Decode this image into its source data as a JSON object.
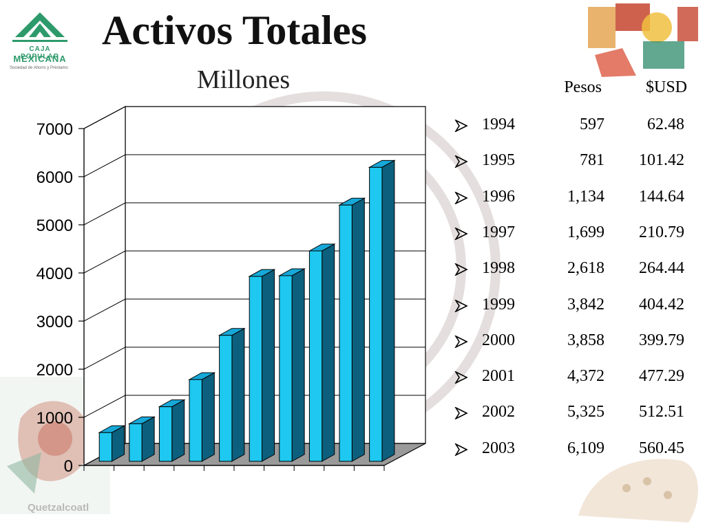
{
  "logo": {
    "line1": "CAJA POPULAR",
    "line2": "MEXICANA",
    "line3": "Sociedad de Ahorro y Préstamo"
  },
  "header": {
    "title": "Activos Totales",
    "subtitle": "Millones"
  },
  "table": {
    "col_pesos": "Pesos",
    "col_usd": "$USD",
    "rows": [
      {
        "year": "1994",
        "pesos": "597",
        "usd": "62.48"
      },
      {
        "year": "1995",
        "pesos": "781",
        "usd": "101.42"
      },
      {
        "year": "1996",
        "pesos": "1,134",
        "usd": "144.64"
      },
      {
        "year": "1997",
        "pesos": "1,699",
        "usd": "210.79"
      },
      {
        "year": "1998",
        "pesos": "2,618",
        "usd": "264.44"
      },
      {
        "year": "1999",
        "pesos": "3,842",
        "usd": "404.42"
      },
      {
        "year": "2000",
        "pesos": "3,858",
        "usd": "399.79"
      },
      {
        "year": "2001",
        "pesos": "4,372",
        "usd": "477.29"
      },
      {
        "year": "2002",
        "pesos": "5,325",
        "usd": "512.51"
      },
      {
        "year": "2003",
        "pesos": "6,109",
        "usd": "560.45"
      }
    ]
  },
  "decorations": {
    "left_caption": "Quetzalcoatl"
  },
  "chart_data": {
    "type": "bar",
    "style": "3d",
    "title": "Activos Totales",
    "subtitle": "Millones",
    "categories": [
      "1994",
      "1995",
      "1996",
      "1997",
      "1998",
      "1999",
      "2000",
      "2001",
      "2002",
      "2003"
    ],
    "values": [
      597,
      781,
      1134,
      1699,
      2618,
      3842,
      3858,
      4372,
      5325,
      6109
    ],
    "ylim": [
      0,
      7000
    ],
    "yticks": [
      0,
      1000,
      2000,
      3000,
      4000,
      5000,
      6000,
      7000
    ],
    "grid": true,
    "colors": {
      "front": "#1ec8f0",
      "side": "#0c5f7d",
      "top": "#16a8d8",
      "edge": "#000000"
    }
  }
}
